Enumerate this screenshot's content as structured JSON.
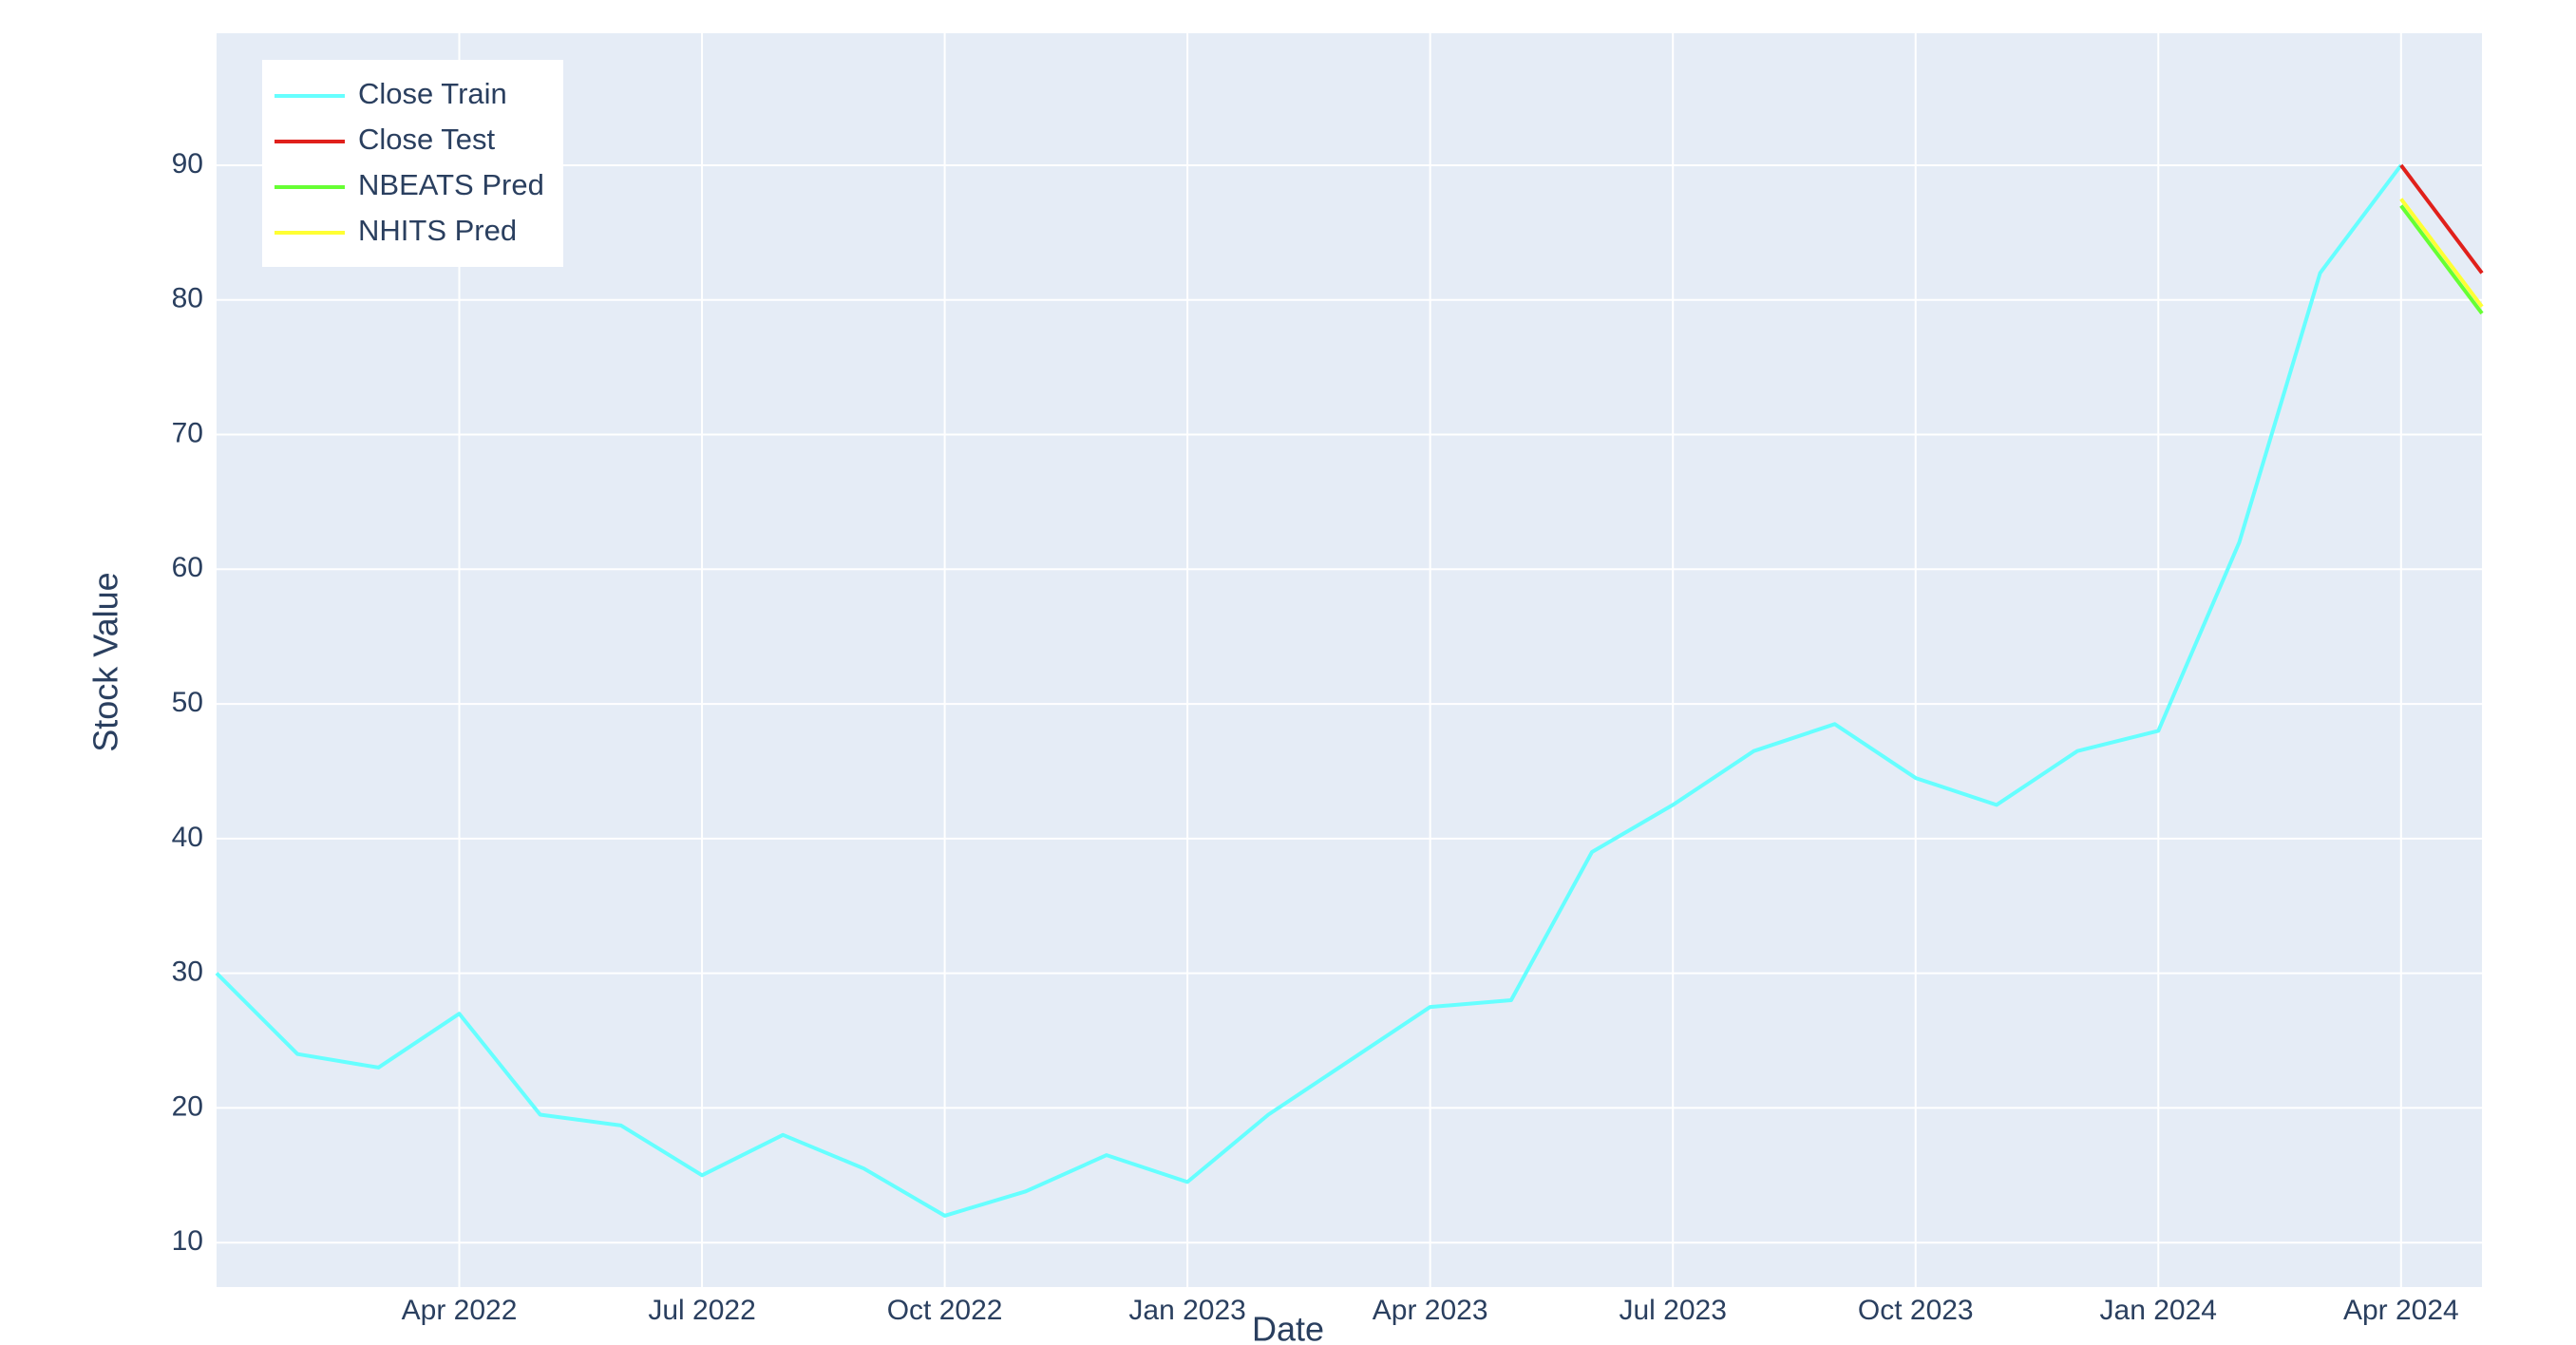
{
  "chart_data": {
    "type": "line",
    "x_title": "Date",
    "y_title": "Stock Value",
    "xlim": [
      "2022-01",
      "2024-05"
    ],
    "xticks": [
      {
        "value": "2022-04",
        "label": "Apr 2022"
      },
      {
        "value": "2022-07",
        "label": "Jul 2022"
      },
      {
        "value": "2022-10",
        "label": "Oct 2022"
      },
      {
        "value": "2023-01",
        "label": "Jan 2023"
      },
      {
        "value": "2023-04",
        "label": "Apr 2023"
      },
      {
        "value": "2023-07",
        "label": "Jul 2023"
      },
      {
        "value": "2023-10",
        "label": "Oct 2023"
      },
      {
        "value": "2024-01",
        "label": "Jan 2024"
      },
      {
        "value": "2024-04",
        "label": "Apr 2024"
      }
    ],
    "ylim": [
      6.7,
      99.8
    ],
    "yticks": [
      10,
      20,
      30,
      40,
      50,
      60,
      70,
      80,
      90
    ],
    "grid": true,
    "legend": "top-left",
    "series": [
      {
        "name": "Close Train",
        "color": "#66ffff",
        "x": [
          "2022-01",
          "2022-02",
          "2022-03",
          "2022-04",
          "2022-05",
          "2022-06",
          "2022-07",
          "2022-08",
          "2022-09",
          "2022-10",
          "2022-11",
          "2022-12",
          "2023-01",
          "2023-02",
          "2023-03",
          "2023-04",
          "2023-05",
          "2023-06",
          "2023-07",
          "2023-08",
          "2023-09",
          "2023-10",
          "2023-11",
          "2023-12",
          "2024-01",
          "2024-02",
          "2024-03",
          "2024-04"
        ],
        "values": [
          30,
          24,
          23,
          27,
          19.5,
          18.7,
          15,
          18,
          15.5,
          12,
          13.8,
          16.5,
          14.5,
          19.5,
          23.5,
          27.5,
          28,
          39,
          42.5,
          46.5,
          48.5,
          44.5,
          42.5,
          46.5,
          48,
          62,
          82,
          90
        ]
      },
      {
        "name": "Close Test",
        "color": "#e0201b",
        "x": [
          "2024-04",
          "2024-05"
        ],
        "values": [
          90,
          82
        ]
      },
      {
        "name": "NBEATS Pred",
        "color": "#66ff33",
        "x": [
          "2024-04",
          "2024-05"
        ],
        "values": [
          87,
          79
        ]
      },
      {
        "name": "NHITS Pred",
        "color": "#ffff33",
        "x": [
          "2024-04",
          "2024-05"
        ],
        "values": [
          87.5,
          79.5
        ]
      }
    ]
  }
}
